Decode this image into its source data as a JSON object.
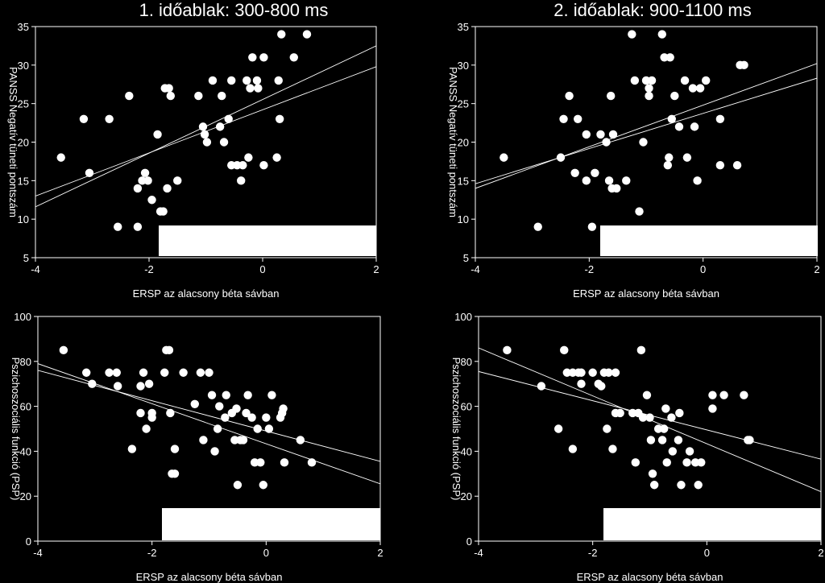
{
  "titles": [
    "1. időablak: 300-800 ms",
    "2. időablak: 900-1100 ms"
  ],
  "chart_data": [
    {
      "type": "scatter",
      "title": "1. időablak: 300-800 ms",
      "xlabel": "ERSP az alacsony béta sávban",
      "ylabel": "PANSS Negatív tüneti pontszám",
      "xlim": [
        -4,
        2
      ],
      "ylim": [
        5,
        35
      ],
      "xticks": [
        -4,
        -2,
        0,
        2
      ],
      "yticks": [
        5,
        10,
        15,
        20,
        25,
        30,
        35
      ],
      "grid": false,
      "points": [
        [
          -3.55,
          18
        ],
        [
          -3.15,
          23
        ],
        [
          -3.05,
          16
        ],
        [
          -2.7,
          23
        ],
        [
          -2.55,
          9
        ],
        [
          -2.35,
          26
        ],
        [
          -2.2,
          14
        ],
        [
          -2.2,
          9
        ],
        [
          -2.12,
          15
        ],
        [
          -2.07,
          16
        ],
        [
          -2.02,
          15
        ],
        [
          -1.95,
          12.5
        ],
        [
          -1.85,
          21
        ],
        [
          -1.8,
          11
        ],
        [
          -1.75,
          11
        ],
        [
          -1.72,
          27
        ],
        [
          -1.68,
          14
        ],
        [
          -1.65,
          27
        ],
        [
          -1.62,
          26
        ],
        [
          -1.5,
          15
        ],
        [
          -1.13,
          26
        ],
        [
          -1.05,
          22
        ],
        [
          -1.02,
          21
        ],
        [
          -0.98,
          20
        ],
        [
          -0.88,
          28
        ],
        [
          -0.75,
          22
        ],
        [
          -0.72,
          26
        ],
        [
          -0.68,
          20
        ],
        [
          -0.6,
          23
        ],
        [
          -0.55,
          28
        ],
        [
          -0.55,
          17
        ],
        [
          -0.45,
          17
        ],
        [
          -0.38,
          15
        ],
        [
          -0.35,
          17
        ],
        [
          -0.28,
          28
        ],
        [
          -0.25,
          18
        ],
        [
          -0.22,
          27
        ],
        [
          -0.18,
          31
        ],
        [
          -0.1,
          28
        ],
        [
          -0.08,
          27
        ],
        [
          0.02,
          31
        ],
        [
          0.02,
          17
        ],
        [
          0.25,
          18
        ],
        [
          0.28,
          28
        ],
        [
          0.3,
          23
        ],
        [
          0.33,
          34
        ],
        [
          0.55,
          31
        ],
        [
          0.78,
          34
        ]
      ],
      "fit_lines": [
        [
          [
            -4,
            11.6
          ],
          [
            2,
            32.5
          ]
        ],
        [
          [
            -4,
            13.0
          ],
          [
            2,
            29.8
          ]
        ]
      ]
    },
    {
      "type": "scatter",
      "title": "2. időablak: 900-1100 ms",
      "xlabel": "ERSP az alacsony béta sávban",
      "ylabel": "PANSS Negatív tüneti pontszám",
      "xlim": [
        -4,
        2
      ],
      "ylim": [
        5,
        35
      ],
      "xticks": [
        -4,
        -2,
        0,
        2
      ],
      "yticks": [
        5,
        10,
        15,
        20,
        25,
        30,
        35
      ],
      "grid": false,
      "points": [
        [
          -3.5,
          18
        ],
        [
          -2.9,
          9
        ],
        [
          -2.5,
          18
        ],
        [
          -2.45,
          23
        ],
        [
          -2.35,
          26
        ],
        [
          -2.25,
          16
        ],
        [
          -2.2,
          23
        ],
        [
          -2.05,
          21
        ],
        [
          -2.05,
          15
        ],
        [
          -1.95,
          9
        ],
        [
          -1.9,
          16
        ],
        [
          -1.8,
          21
        ],
        [
          -1.7,
          20
        ],
        [
          -1.65,
          15
        ],
        [
          -1.62,
          26
        ],
        [
          -1.6,
          14
        ],
        [
          -1.58,
          21
        ],
        [
          -1.52,
          14
        ],
        [
          -1.35,
          15
        ],
        [
          -1.25,
          34
        ],
        [
          -1.2,
          28
        ],
        [
          -1.12,
          11
        ],
        [
          -1.05,
          20
        ],
        [
          -1.0,
          28
        ],
        [
          -0.95,
          27
        ],
        [
          -0.95,
          26
        ],
        [
          -0.9,
          28
        ],
        [
          -0.72,
          34
        ],
        [
          -0.68,
          31
        ],
        [
          -0.62,
          17
        ],
        [
          -0.6,
          18
        ],
        [
          -0.58,
          31
        ],
        [
          -0.55,
          23
        ],
        [
          -0.5,
          26
        ],
        [
          -0.42,
          22
        ],
        [
          -0.32,
          28
        ],
        [
          -0.28,
          18
        ],
        [
          -0.18,
          27
        ],
        [
          -0.15,
          22
        ],
        [
          -0.1,
          15
        ],
        [
          -0.05,
          27
        ],
        [
          0.05,
          28
        ],
        [
          0.3,
          23
        ],
        [
          0.3,
          17
        ],
        [
          0.6,
          17
        ],
        [
          0.65,
          30
        ],
        [
          0.72,
          30
        ]
      ],
      "fit_lines": [
        [
          [
            -4,
            14.0
          ],
          [
            2,
            30.2
          ]
        ],
        [
          [
            -4,
            14.6
          ],
          [
            2,
            28.3
          ]
        ]
      ]
    },
    {
      "type": "scatter",
      "title": "",
      "xlabel": "ERSP az alacsony béta sávban",
      "ylabel": "Pszichoszociális funkció (PSP)",
      "xlim": [
        -4,
        2
      ],
      "ylim": [
        0,
        100
      ],
      "xticks": [
        -4,
        -2,
        0,
        2
      ],
      "yticks": [
        0,
        20,
        40,
        60,
        80,
        100
      ],
      "grid": false,
      "points": [
        [
          -3.55,
          85
        ],
        [
          -3.15,
          75
        ],
        [
          -3.05,
          70
        ],
        [
          -2.75,
          75
        ],
        [
          -2.62,
          75
        ],
        [
          -2.6,
          69
        ],
        [
          -2.35,
          41
        ],
        [
          -2.2,
          69
        ],
        [
          -2.2,
          57
        ],
        [
          -2.15,
          75
        ],
        [
          -2.1,
          50
        ],
        [
          -2.05,
          70
        ],
        [
          -2.0,
          57
        ],
        [
          -2.0,
          55
        ],
        [
          -1.78,
          75
        ],
        [
          -1.75,
          85
        ],
        [
          -1.7,
          85
        ],
        [
          -1.68,
          57
        ],
        [
          -1.65,
          30
        ],
        [
          -1.6,
          41
        ],
        [
          -1.6,
          30
        ],
        [
          -1.45,
          75
        ],
        [
          -1.25,
          61
        ],
        [
          -1.15,
          75
        ],
        [
          -1.1,
          45
        ],
        [
          -1.0,
          75
        ],
        [
          -0.95,
          65
        ],
        [
          -0.9,
          40
        ],
        [
          -0.85,
          50
        ],
        [
          -0.82,
          60
        ],
        [
          -0.72,
          55
        ],
        [
          -0.7,
          65
        ],
        [
          -0.6,
          57
        ],
        [
          -0.55,
          45
        ],
        [
          -0.52,
          59
        ],
        [
          -0.5,
          25
        ],
        [
          -0.45,
          45
        ],
        [
          -0.4,
          45
        ],
        [
          -0.35,
          57
        ],
        [
          -0.32,
          65
        ],
        [
          -0.25,
          55
        ],
        [
          -0.2,
          35
        ],
        [
          -0.15,
          50
        ],
        [
          -0.1,
          35
        ],
        [
          -0.05,
          25
        ],
        [
          0.0,
          55
        ],
        [
          0.05,
          50
        ],
        [
          0.1,
          65
        ],
        [
          0.25,
          55
        ],
        [
          0.28,
          57
        ],
        [
          0.3,
          59
        ],
        [
          0.32,
          35
        ],
        [
          0.6,
          45
        ],
        [
          0.8,
          35
        ]
      ],
      "fit_lines": [
        [
          [
            -4,
            79.0
          ],
          [
            2,
            25.5
          ]
        ],
        [
          [
            -4,
            76.0
          ],
          [
            2,
            35.5
          ]
        ]
      ]
    },
    {
      "type": "scatter",
      "title": "",
      "xlabel": "ERSP az alacsony béta sávban",
      "ylabel": "Pszichoszociális funkció  (PSP)",
      "xlim": [
        -4,
        2
      ],
      "ylim": [
        0,
        100
      ],
      "xticks": [
        -4,
        -2,
        0,
        2
      ],
      "yticks": [
        0,
        20,
        40,
        60,
        80,
        100
      ],
      "grid": false,
      "points": [
        [
          -3.5,
          85
        ],
        [
          -2.9,
          69
        ],
        [
          -2.6,
          50
        ],
        [
          -2.5,
          85
        ],
        [
          -2.45,
          75
        ],
        [
          -2.35,
          41
        ],
        [
          -2.35,
          75
        ],
        [
          -2.25,
          75
        ],
        [
          -2.2,
          70
        ],
        [
          -2.2,
          75
        ],
        [
          -2.0,
          75
        ],
        [
          -1.9,
          70
        ],
        [
          -1.85,
          69
        ],
        [
          -1.8,
          75
        ],
        [
          -1.75,
          50
        ],
        [
          -1.72,
          75
        ],
        [
          -1.65,
          41
        ],
        [
          -1.6,
          57
        ],
        [
          -1.6,
          75
        ],
        [
          -1.52,
          57
        ],
        [
          -1.3,
          57
        ],
        [
          -1.25,
          35
        ],
        [
          -1.2,
          57
        ],
        [
          -1.15,
          85
        ],
        [
          -1.12,
          55
        ],
        [
          -1.05,
          65
        ],
        [
          -1.0,
          55
        ],
        [
          -0.98,
          45
        ],
        [
          -0.95,
          30
        ],
        [
          -0.92,
          25
        ],
        [
          -0.85,
          50
        ],
        [
          -0.78,
          45
        ],
        [
          -0.75,
          50
        ],
        [
          -0.72,
          59
        ],
        [
          -0.7,
          35
        ],
        [
          -0.62,
          55
        ],
        [
          -0.6,
          40
        ],
        [
          -0.5,
          45
        ],
        [
          -0.48,
          57
        ],
        [
          -0.45,
          25
        ],
        [
          -0.35,
          35
        ],
        [
          -0.3,
          40
        ],
        [
          -0.2,
          35
        ],
        [
          -0.15,
          25
        ],
        [
          -0.1,
          35
        ],
        [
          0.1,
          65
        ],
        [
          0.1,
          59
        ],
        [
          0.3,
          65
        ],
        [
          0.65,
          65
        ],
        [
          0.72,
          45
        ],
        [
          0.75,
          45
        ]
      ],
      "fit_lines": [
        [
          [
            -4,
            86.0
          ],
          [
            2,
            22.0
          ]
        ],
        [
          [
            -4,
            75.5
          ],
          [
            2,
            36.5
          ]
        ]
      ]
    }
  ]
}
